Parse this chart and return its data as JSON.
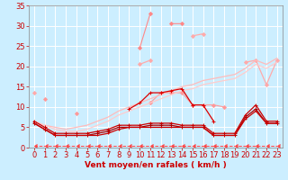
{
  "title": "",
  "xlabel": "Vent moyen/en rafales ( km/h )",
  "x": [
    0,
    1,
    2,
    3,
    4,
    5,
    6,
    7,
    8,
    9,
    10,
    11,
    12,
    13,
    14,
    15,
    16,
    17,
    18,
    19,
    20,
    21,
    22,
    23
  ],
  "series": [
    {
      "name": "pink_peak_dotted",
      "color": "#ff8888",
      "linewidth": 0.8,
      "marker": "D",
      "markersize": 2.0,
      "linestyle": "-",
      "y": [
        null,
        null,
        null,
        null,
        null,
        null,
        null,
        null,
        null,
        null,
        24.5,
        33.0,
        null,
        30.5,
        30.5,
        null,
        null,
        null,
        null,
        null,
        null,
        null,
        null,
        null
      ]
    },
    {
      "name": "light_pink_smooth_upper",
      "color": "#ffaaaa",
      "linewidth": 0.9,
      "marker": "D",
      "markersize": 2.0,
      "linestyle": "-",
      "y": [
        13.5,
        null,
        null,
        null,
        null,
        null,
        null,
        null,
        null,
        null,
        20.5,
        21.5,
        null,
        null,
        null,
        27.5,
        28.0,
        null,
        null,
        null,
        21.0,
        21.5,
        15.5,
        21.5
      ]
    },
    {
      "name": "pink_mid_markers",
      "color": "#ff9999",
      "linewidth": 0.8,
      "marker": "D",
      "markersize": 2.0,
      "linestyle": "-",
      "y": [
        null,
        12.0,
        null,
        null,
        8.5,
        null,
        null,
        null,
        null,
        null,
        null,
        11.0,
        13.5,
        13.5,
        13.5,
        10.5,
        10.5,
        10.5,
        10.0,
        null,
        null,
        null,
        null,
        null
      ]
    },
    {
      "name": "light_smooth_upper_line",
      "color": "#ffbbbb",
      "linewidth": 0.9,
      "marker": null,
      "linestyle": "-",
      "y": [
        6.5,
        5.5,
        5.0,
        4.5,
        5.0,
        5.5,
        6.5,
        7.5,
        9.0,
        10.0,
        11.0,
        12.0,
        13.0,
        14.0,
        15.0,
        15.5,
        16.5,
        17.0,
        17.5,
        18.0,
        19.5,
        21.5,
        20.5,
        22.0
      ]
    },
    {
      "name": "light_smooth_lower_line",
      "color": "#ffcccc",
      "linewidth": 0.9,
      "marker": null,
      "linestyle": "-",
      "y": [
        6.5,
        5.5,
        4.5,
        4.0,
        4.0,
        4.5,
        5.5,
        6.5,
        8.0,
        9.0,
        10.0,
        11.0,
        12.0,
        13.0,
        14.0,
        14.5,
        15.5,
        16.0,
        16.5,
        17.0,
        18.5,
        20.5,
        19.5,
        21.0
      ]
    },
    {
      "name": "dark_red_markers_mid",
      "color": "#dd0000",
      "linewidth": 0.9,
      "marker": "+",
      "markersize": 3.5,
      "linestyle": "-",
      "y": [
        null,
        null,
        null,
        null,
        null,
        null,
        null,
        null,
        null,
        9.5,
        11.0,
        13.5,
        13.5,
        14.0,
        14.5,
        10.5,
        10.5,
        6.5,
        null,
        null,
        null,
        null,
        null,
        null
      ]
    },
    {
      "name": "dark_red_flat_upper",
      "color": "#cc0000",
      "linewidth": 0.9,
      "marker": "+",
      "markersize": 2.5,
      "linestyle": "-",
      "y": [
        6.5,
        5.0,
        3.5,
        3.5,
        3.5,
        3.5,
        4.0,
        4.5,
        5.5,
        5.5,
        5.5,
        6.0,
        6.0,
        6.0,
        5.5,
        5.5,
        5.5,
        3.5,
        3.5,
        3.5,
        8.0,
        10.5,
        6.5,
        6.5
      ]
    },
    {
      "name": "dark_red_flat_lower",
      "color": "#aa0000",
      "linewidth": 0.9,
      "marker": "+",
      "markersize": 2.5,
      "linestyle": "-",
      "y": [
        6.0,
        4.5,
        3.0,
        3.0,
        3.0,
        3.0,
        3.5,
        4.0,
        5.0,
        5.0,
        5.0,
        5.5,
        5.5,
        5.5,
        5.0,
        5.0,
        5.0,
        3.0,
        3.0,
        3.0,
        7.5,
        9.5,
        6.0,
        6.0
      ]
    },
    {
      "name": "dark_red_flat_bottom",
      "color": "#cc0000",
      "linewidth": 0.9,
      "marker": "+",
      "markersize": 2.0,
      "linestyle": "-",
      "y": [
        6.0,
        4.5,
        3.0,
        3.0,
        3.0,
        3.0,
        3.0,
        3.5,
        4.5,
        5.0,
        5.0,
        5.0,
        5.0,
        5.0,
        5.0,
        5.0,
        5.0,
        3.0,
        3.0,
        3.0,
        7.0,
        9.0,
        6.0,
        6.0
      ]
    },
    {
      "name": "dashed_arrow_bottom",
      "color": "#ff4444",
      "linewidth": 0.7,
      "marker": 4,
      "markersize": 3.0,
      "linestyle": "--",
      "y": [
        0.5,
        0.5,
        0.5,
        0.5,
        0.5,
        0.5,
        0.5,
        0.5,
        0.5,
        0.5,
        0.5,
        0.5,
        0.5,
        0.5,
        0.5,
        0.5,
        0.5,
        0.5,
        0.5,
        0.5,
        0.5,
        0.5,
        0.5,
        0.5
      ]
    }
  ],
  "ylim": [
    0,
    35
  ],
  "xlim": [
    -0.5,
    23.5
  ],
  "yticks": [
    0,
    5,
    10,
    15,
    20,
    25,
    30,
    35
  ],
  "xticks": [
    0,
    1,
    2,
    3,
    4,
    5,
    6,
    7,
    8,
    9,
    10,
    11,
    12,
    13,
    14,
    15,
    16,
    17,
    18,
    19,
    20,
    21,
    22,
    23
  ],
  "bg_color": "#cceeff",
  "grid_color": "#bbdddd",
  "tick_color": "#cc0000",
  "label_color": "#cc0000",
  "xlabel_fontsize": 6.5,
  "tick_fontsize": 6.0
}
